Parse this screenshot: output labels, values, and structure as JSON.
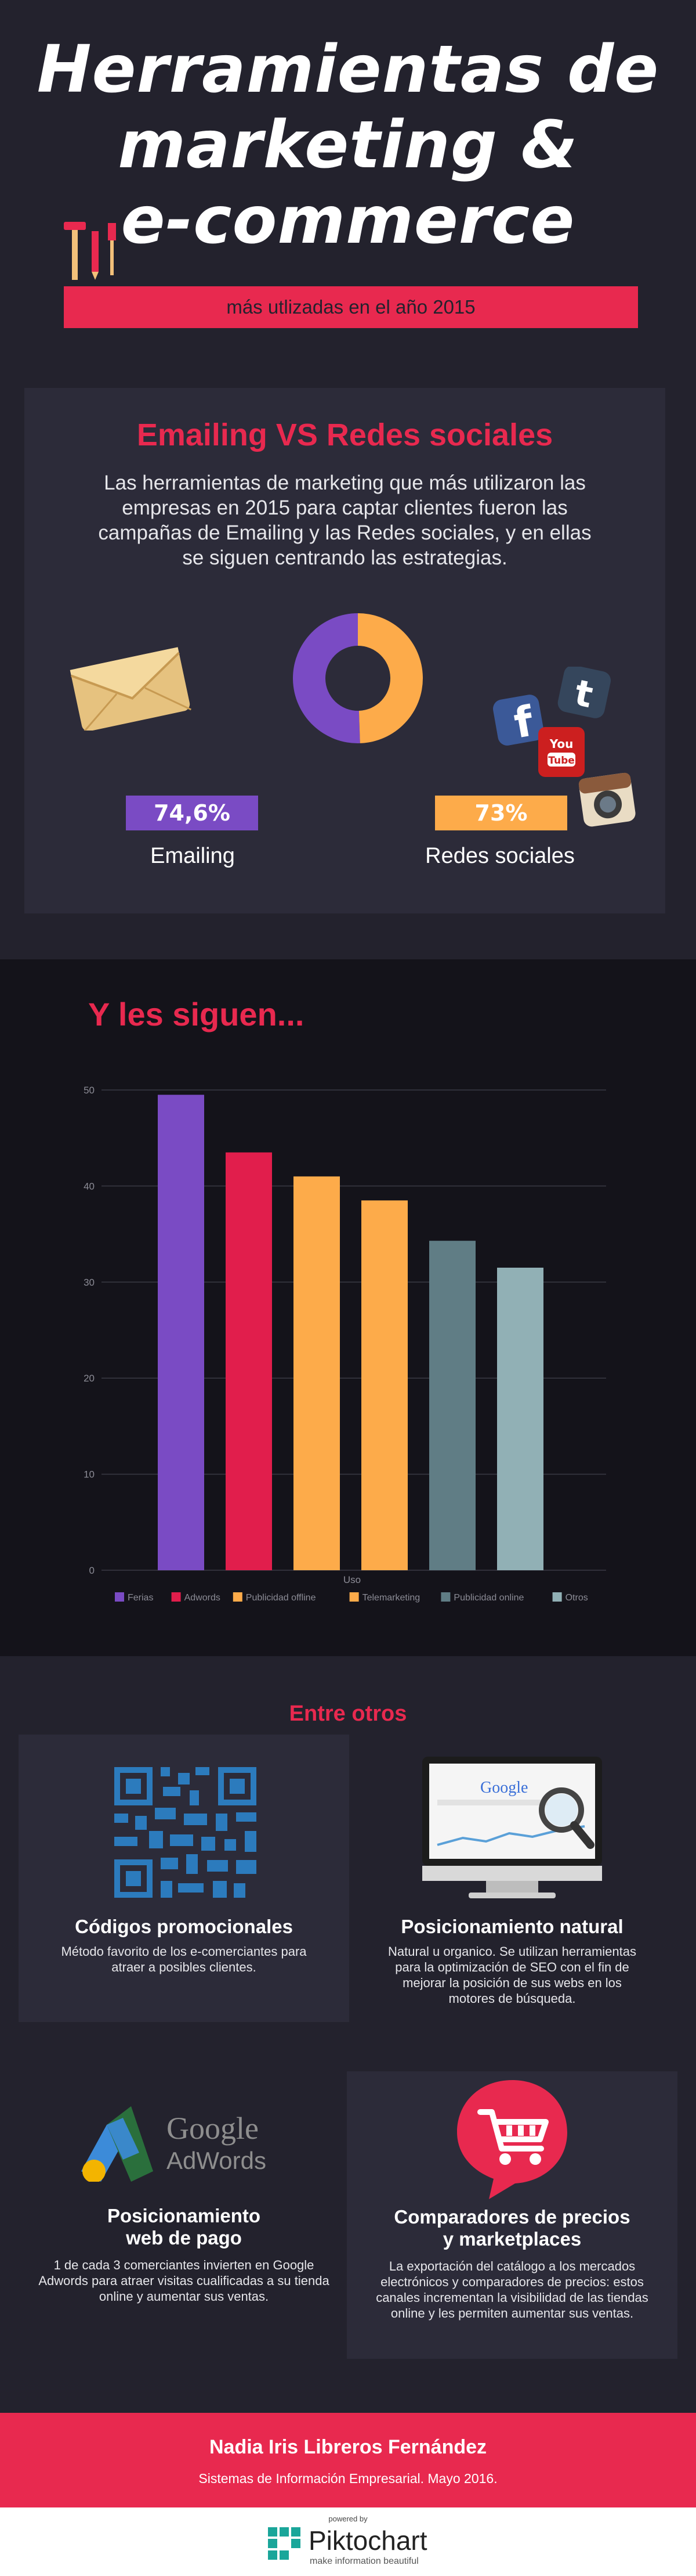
{
  "header": {
    "title_lines": [
      "Herramientas de",
      "marketing &",
      "e-commerce"
    ],
    "subtitle": "más utlizadas en el año 2015"
  },
  "comparison": {
    "title": "Emailing VS Redes sociales",
    "text": "Las herramientas de marketing que más utilizaron las empresas en 2015 para captar clientes fueron las campañas de Emailing y las Redes sociales, y en ellas se siguen centrando las estrategias.",
    "left": {
      "value": "74,6%",
      "label": "Emailing",
      "color": "#7a4bc4"
    },
    "right": {
      "value": "73%",
      "label": "Redes sociales",
      "color": "#fdab4a"
    },
    "donut": {
      "emailing_share": 0.5054,
      "redes_share": 0.4946
    },
    "youtube_text": [
      "You",
      "Tube"
    ]
  },
  "chart_section": {
    "title": "Y les siguen..."
  },
  "chart_data": {
    "type": "bar",
    "categories": [
      "Uso"
    ],
    "xlabel": "Uso",
    "ylim": [
      0,
      50
    ],
    "yticks": [
      0,
      10,
      20,
      30,
      40,
      50
    ],
    "grid": true,
    "legend_position": "bottom",
    "series": [
      {
        "name": "Ferias",
        "value": 49.5,
        "color": "#7a4bc4"
      },
      {
        "name": "Adwords",
        "value": 43.5,
        "color": "#e11e4c"
      },
      {
        "name": "Publicidad offline",
        "value": 41,
        "color": "#fdab4a"
      },
      {
        "name": "Telemarketing",
        "value": 38.5,
        "color": "#fdab4a"
      },
      {
        "name": "Publicidad online",
        "value": 34.3,
        "color": "#607d85"
      },
      {
        "name": "Otros",
        "value": 31.5,
        "color": "#91b0b5"
      }
    ]
  },
  "others": {
    "title": "Entre otros",
    "tools": [
      {
        "title": "Códigos promocionales",
        "desc": "Método favorito de los e-comerciantes para atraer a posibles clientes."
      },
      {
        "title": "Posicionamiento natural",
        "desc": "Natural u organico. Se utilizan herramientas para la optimización de SEO con el fin de mejorar la posición de sus webs en los motores de búsqueda.",
        "screen_text": "Google"
      },
      {
        "title": "Posicionamiento web de pago",
        "title_lines": [
          "Posicionamiento",
          "web de pago"
        ],
        "desc": "1 de cada 3 comerciantes invierten en Google Adwords para atraer visitas cualificadas a su tienda online y aumentar sus ventas.",
        "logo_lines": [
          "Google",
          "AdWords"
        ]
      },
      {
        "title": "Comparadores de precios y marketplaces",
        "title_lines": [
          "Comparadores de precios",
          "y marketplaces"
        ],
        "desc": "La exportación del catálogo a los mercados electrónicos y comparadores de precios: estos canales incrementan la visibilidad de las tiendas online y les permiten aumentar sus ventas."
      }
    ]
  },
  "footer": {
    "author": "Nadia Iris Libreros Fernández",
    "note": "Sistemas de Información Empresarial. Mayo 2016."
  },
  "credit": {
    "powered": "powered by",
    "brand": "Piktochart",
    "tagline": "make information beautiful"
  }
}
